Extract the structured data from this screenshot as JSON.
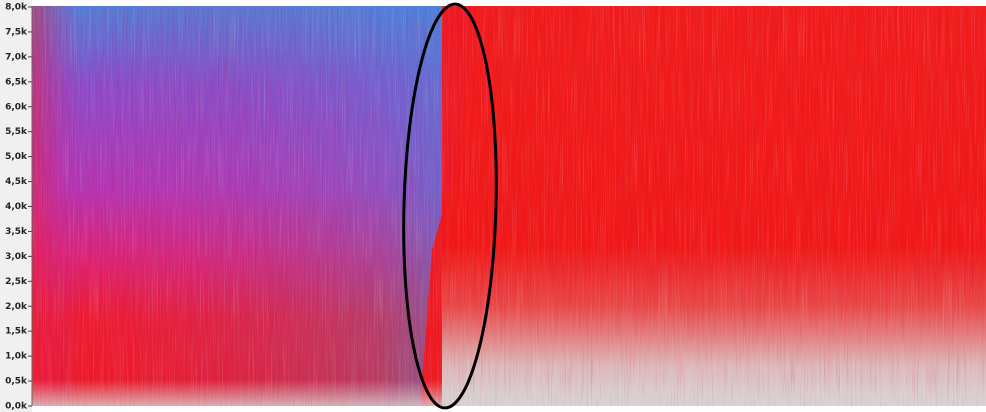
{
  "chart_data": {
    "type": "spectrogram",
    "ylim": [
      0,
      8000
    ],
    "yticks": [
      {
        "value": 0,
        "label": "0,0k"
      },
      {
        "value": 500,
        "label": "0,5k"
      },
      {
        "value": 1000,
        "label": "1,0k"
      },
      {
        "value": 1500,
        "label": "1,5k"
      },
      {
        "value": 2000,
        "label": "2,0k"
      },
      {
        "value": 2500,
        "label": "2,5k"
      },
      {
        "value": 3000,
        "label": "3,0k"
      },
      {
        "value": 3500,
        "label": "3,5k"
      },
      {
        "value": 4000,
        "label": "4,0k"
      },
      {
        "value": 4500,
        "label": "4,5k"
      },
      {
        "value": 5000,
        "label": "5,0k"
      },
      {
        "value": 5500,
        "label": "5,5k"
      },
      {
        "value": 6000,
        "label": "6,0k"
      },
      {
        "value": 6500,
        "label": "6,5k"
      },
      {
        "value": 7000,
        "label": "7,0k"
      },
      {
        "value": 7500,
        "label": "7,5k"
      },
      {
        "value": 8000,
        "label": "8,0k"
      }
    ]
  }
}
